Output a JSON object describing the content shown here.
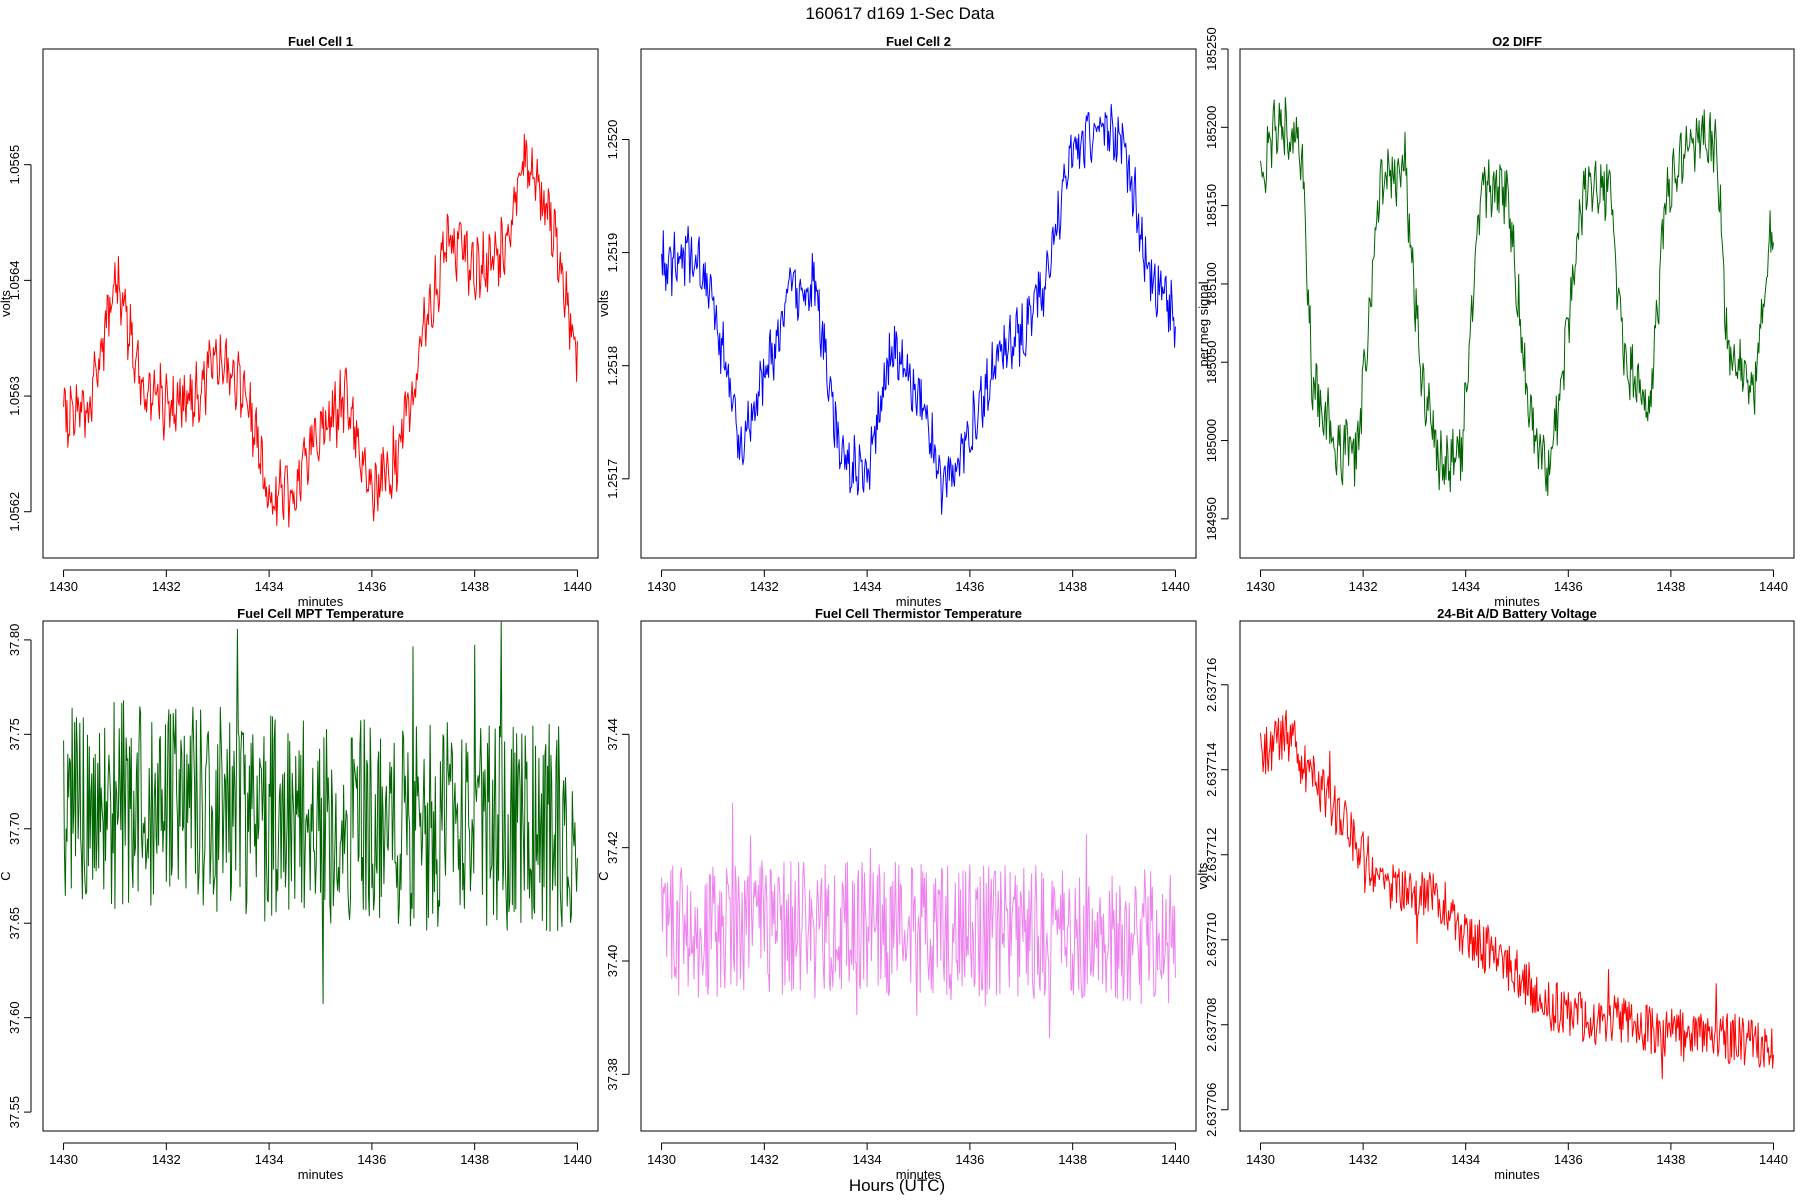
{
  "page": {
    "title": "160617   d169   1-Sec Data",
    "bottom_label": "Hours (UTC)"
  },
  "chart_data": [
    {
      "type": "line",
      "title": "Fuel Cell 1",
      "xlabel": "minutes",
      "ylabel": "volts",
      "color": "#ff0000",
      "xlim": [
        1429.6,
        1440.4
      ],
      "ylim": [
        1.05616,
        1.0566
      ],
      "xticks": [
        1430,
        1432,
        1434,
        1436,
        1438,
        1440
      ],
      "yticks": [
        1.0562,
        1.0563,
        1.0564,
        1.0565
      ],
      "yticklabels": [
        "1.0562",
        "1.0563",
        "1.0564",
        "1.0565"
      ],
      "x": [
        1430,
        1430.5,
        1431,
        1431.5,
        1432,
        1432.5,
        1433,
        1433.5,
        1434,
        1434.5,
        1435,
        1435.5,
        1436,
        1436.5,
        1437,
        1437.5,
        1438,
        1438.5,
        1439,
        1439.5,
        1440
      ],
      "y": [
        1.056285,
        1.05629,
        1.0564,
        1.05632,
        1.05629,
        1.056295,
        1.05633,
        1.05631,
        1.05621,
        1.05622,
        1.056275,
        1.056295,
        1.056215,
        1.05625,
        1.05635,
        1.05644,
        1.05641,
        1.05642,
        1.05651,
        1.05645,
        1.056333
      ]
    },
    {
      "type": "line",
      "title": "Fuel Cell 2",
      "xlabel": "minutes",
      "ylabel": "volts",
      "color": "#0000ff",
      "xlim": [
        1429.6,
        1440.4
      ],
      "ylim": [
        1.25163,
        1.25208
      ],
      "xticks": [
        1430,
        1432,
        1434,
        1436,
        1438,
        1440
      ],
      "yticks": [
        1.2517,
        1.2518,
        1.2519,
        1.252
      ],
      "yticklabels": [
        "1.2517",
        "1.2518",
        "1.2519",
        "1.2520"
      ],
      "x": [
        1430,
        1430.5,
        1431,
        1431.5,
        1432,
        1432.5,
        1433,
        1433.5,
        1434,
        1434.5,
        1435,
        1435.5,
        1436,
        1436.5,
        1437,
        1437.5,
        1438,
        1438.5,
        1439,
        1439.5,
        1440
      ],
      "y": [
        1.25189,
        1.2519,
        1.25186,
        1.25173,
        1.25179,
        1.25187,
        1.25187,
        1.25171,
        1.25171,
        1.25182,
        1.25177,
        1.25169,
        1.25174,
        1.2518,
        1.25183,
        1.25188,
        1.252,
        1.25201,
        1.25199,
        1.25188,
        1.25184
      ]
    },
    {
      "type": "line",
      "title": "O2 DIFF",
      "xlabel": "minutes",
      "ylabel": "per meg signal",
      "color": "#006400",
      "xlim": [
        1429.6,
        1440.4
      ],
      "ylim": [
        184925,
        185250
      ],
      "xticks": [
        1430,
        1432,
        1434,
        1436,
        1438,
        1440
      ],
      "yticks": [
        184950,
        185000,
        185050,
        185100,
        185150,
        185200,
        185250
      ],
      "yticklabels": [
        "184950",
        "185000",
        "185050",
        "185100",
        "185150",
        "185200",
        "185250"
      ],
      "x": [
        1430,
        1430.3,
        1430.8,
        1431,
        1431.5,
        1431.9,
        1432.3,
        1432.8,
        1433.1,
        1433.5,
        1433.9,
        1434.3,
        1434.8,
        1435.2,
        1435.6,
        1435.9,
        1436.3,
        1436.8,
        1437.1,
        1437.6,
        1437.9,
        1438.3,
        1438.9,
        1439.1,
        1439.6,
        1440
      ],
      "y": [
        185170,
        185200,
        185190,
        185040,
        184995,
        184995,
        185160,
        185180,
        185050,
        184985,
        184990,
        185160,
        185160,
        185030,
        184975,
        185050,
        185160,
        185165,
        185050,
        185020,
        185160,
        185190,
        185190,
        185060,
        185030,
        185145
      ]
    },
    {
      "type": "line",
      "title": "Fuel Cell MPT Temperature",
      "xlabel": "minutes",
      "ylabel": "C",
      "color": "#006400",
      "xlim": [
        1429.6,
        1440.4
      ],
      "ylim": [
        37.54,
        37.81
      ],
      "xticks": [
        1430,
        1432,
        1434,
        1436,
        1438,
        1440
      ],
      "yticks": [
        37.55,
        37.6,
        37.65,
        37.7,
        37.75,
        37.8
      ],
      "yticklabels": [
        "37.55",
        "37.60",
        "37.65",
        "37.70",
        "37.75",
        "37.80"
      ],
      "x": [
        1430,
        1432,
        1434,
        1436,
        1438,
        1440
      ],
      "y": [
        37.71,
        37.715,
        37.705,
        37.705,
        37.7,
        37.7
      ],
      "spread": 0.055
    },
    {
      "type": "line",
      "title": "Fuel Cell Thermistor Temperature",
      "xlabel": "minutes",
      "ylabel": "C",
      "color": "#ee82ee",
      "xlim": [
        1429.6,
        1440.4
      ],
      "ylim": [
        37.37,
        37.46
      ],
      "xticks": [
        1430,
        1432,
        1434,
        1436,
        1438,
        1440
      ],
      "yticks": [
        37.38,
        37.4,
        37.42,
        37.44
      ],
      "yticklabels": [
        "37.38",
        "37.40",
        "37.42",
        "37.44"
      ],
      "x": [
        1430,
        1432,
        1434,
        1436,
        1438,
        1440
      ],
      "y": [
        37.405,
        37.406,
        37.406,
        37.405,
        37.405,
        37.404
      ],
      "spread": 0.012
    },
    {
      "type": "line",
      "title": "24-Bit A/D Battery Voltage",
      "xlabel": "",
      "ylabel": "volts",
      "color": "#ff0000",
      "xlim": [
        1429.6,
        1440.4
      ],
      "ylim": [
        2.6377055,
        2.6377175
      ],
      "xticks": [
        1430,
        1432,
        1434,
        1436,
        1438,
        1440
      ],
      "yticks": [
        2.637706,
        2.637708,
        2.63771,
        2.637712,
        2.637714,
        2.637716
      ],
      "yticklabels": [
        "2.637706",
        "2.637708",
        "2.637710",
        "2.637712",
        "2.637714",
        "2.637716"
      ],
      "x": [
        1430,
        1430.5,
        1431,
        1431.5,
        1432,
        1432.5,
        1433,
        1433.5,
        1434,
        1434.5,
        1435,
        1435.5,
        1436,
        1436.5,
        1437,
        1437.5,
        1438,
        1438.5,
        1439,
        1439.5,
        1440
      ],
      "y": [
        2.6377143,
        2.6377148,
        2.6377138,
        2.637713,
        2.637712,
        2.6377113,
        2.637711,
        2.637711,
        2.6377101,
        2.6377097,
        2.6377092,
        2.6377085,
        2.6377083,
        2.6377081,
        2.6377081,
        2.6377079,
        2.6377078,
        2.6377077,
        2.6377077,
        2.6377076,
        2.6377075
      ],
      "spread": 6e-07
    }
  ]
}
